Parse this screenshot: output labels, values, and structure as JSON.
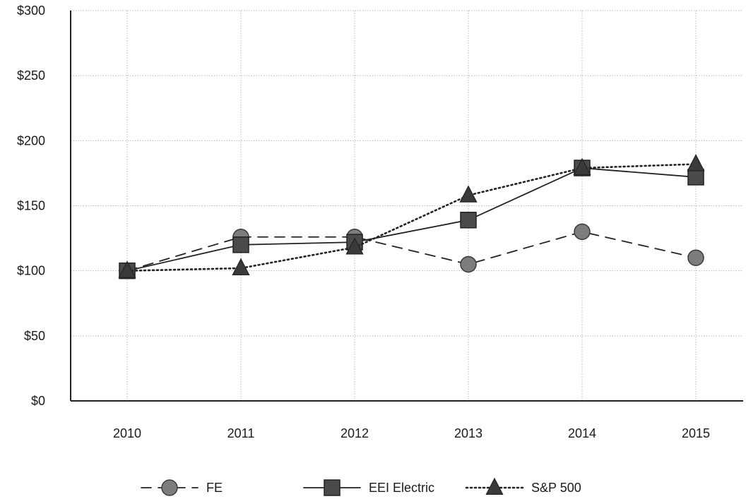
{
  "chart_data": {
    "type": "line",
    "title": "",
    "xlabel": "",
    "ylabel": "",
    "categories": [
      "2010",
      "2011",
      "2012",
      "2013",
      "2014",
      "2015"
    ],
    "ylim": [
      0,
      300
    ],
    "yticks": [
      0,
      50,
      100,
      150,
      200,
      250,
      300
    ],
    "ytick_labels": [
      "$0",
      "$50",
      "$100",
      "$150",
      "$200",
      "$250",
      "$300"
    ],
    "grid": true,
    "legend_position": "bottom",
    "series": [
      {
        "name": "FE",
        "values": [
          100,
          126,
          126,
          105,
          130,
          110
        ],
        "marker": "circle",
        "line_style": "dashed",
        "color": "#555555"
      },
      {
        "name": "EEI Electric",
        "values": [
          100,
          120,
          122,
          139,
          179,
          172
        ],
        "marker": "square",
        "line_style": "solid",
        "color": "#333333"
      },
      {
        "name": "S&P 500",
        "values": [
          100,
          102,
          118,
          158,
          179,
          182
        ],
        "marker": "triangle",
        "line_style": "dotted",
        "color": "#333333"
      }
    ]
  }
}
